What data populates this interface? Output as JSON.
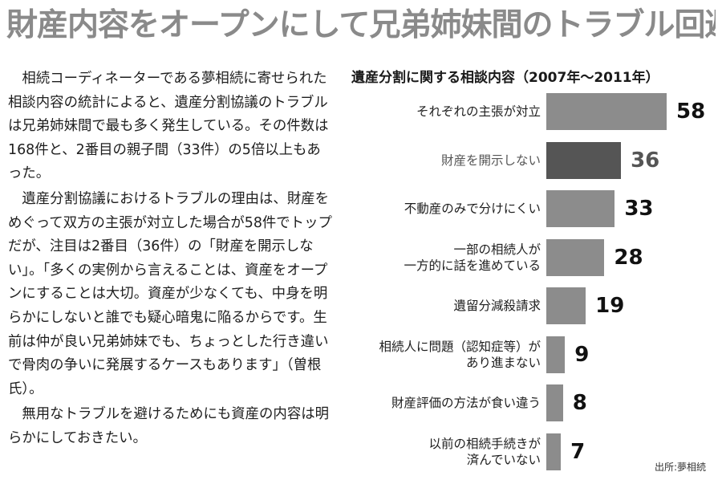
{
  "headline": "財産内容をオープンにして兄弟姉妹間のトラブル回避",
  "article": {
    "paragraphs": [
      "相続コーディネーターである夢相続に寄せられた相談内容の統計によると、遺産分割協議のトラブルは兄弟姉妹間で最も多く発生している。その件数は168件と、2番目の親子間（33件）の5倍以上もあった。",
      "遺産分割協議におけるトラブルの理由は、財産をめぐって双方の主張が対立した場合が58件でトップだが、注目は2番目（36件）の「財産を開示しない」。「多くの実例から言えることは、資産をオープンにすることは大切。資産が少なくても、中身を明らかにしないと誰でも疑心暗鬼に陥るからです。生前は仲が良い兄弟姉妹でも、ちょっとした行き違いで骨肉の争いに発展するケースもあります」（曽根氏）。",
      "無用なトラブルを避けるためにも資産の内容は明らかにしておきたい。"
    ]
  },
  "chart_data": {
    "type": "bar",
    "orientation": "horizontal",
    "title": "遺産分割に関する相談内容（2007年～2011年）",
    "categories": [
      "それぞれの主張が対立",
      "財産を開示しない",
      "不動産のみで分けにくい",
      "一部の相続人が\n一方的に話を進めている",
      "遺留分減殺請求",
      "相続人に問題（認知症等）が\nあり進まない",
      "財産評価の方法が食い違う",
      "以前の相続手続きが\n済んでいない"
    ],
    "values": [
      58,
      36,
      33,
      28,
      19,
      9,
      8,
      7
    ],
    "value_labels": [
      "58",
      "36",
      "33",
      "28",
      "19",
      "9",
      "8",
      "7"
    ],
    "highlight_index": 1,
    "colors": {
      "bar": "#8c8c8c",
      "highlight": "#555555"
    },
    "xlim": [
      0,
      58
    ],
    "grid": false,
    "legend": "none",
    "source": "出所:夢相続"
  }
}
